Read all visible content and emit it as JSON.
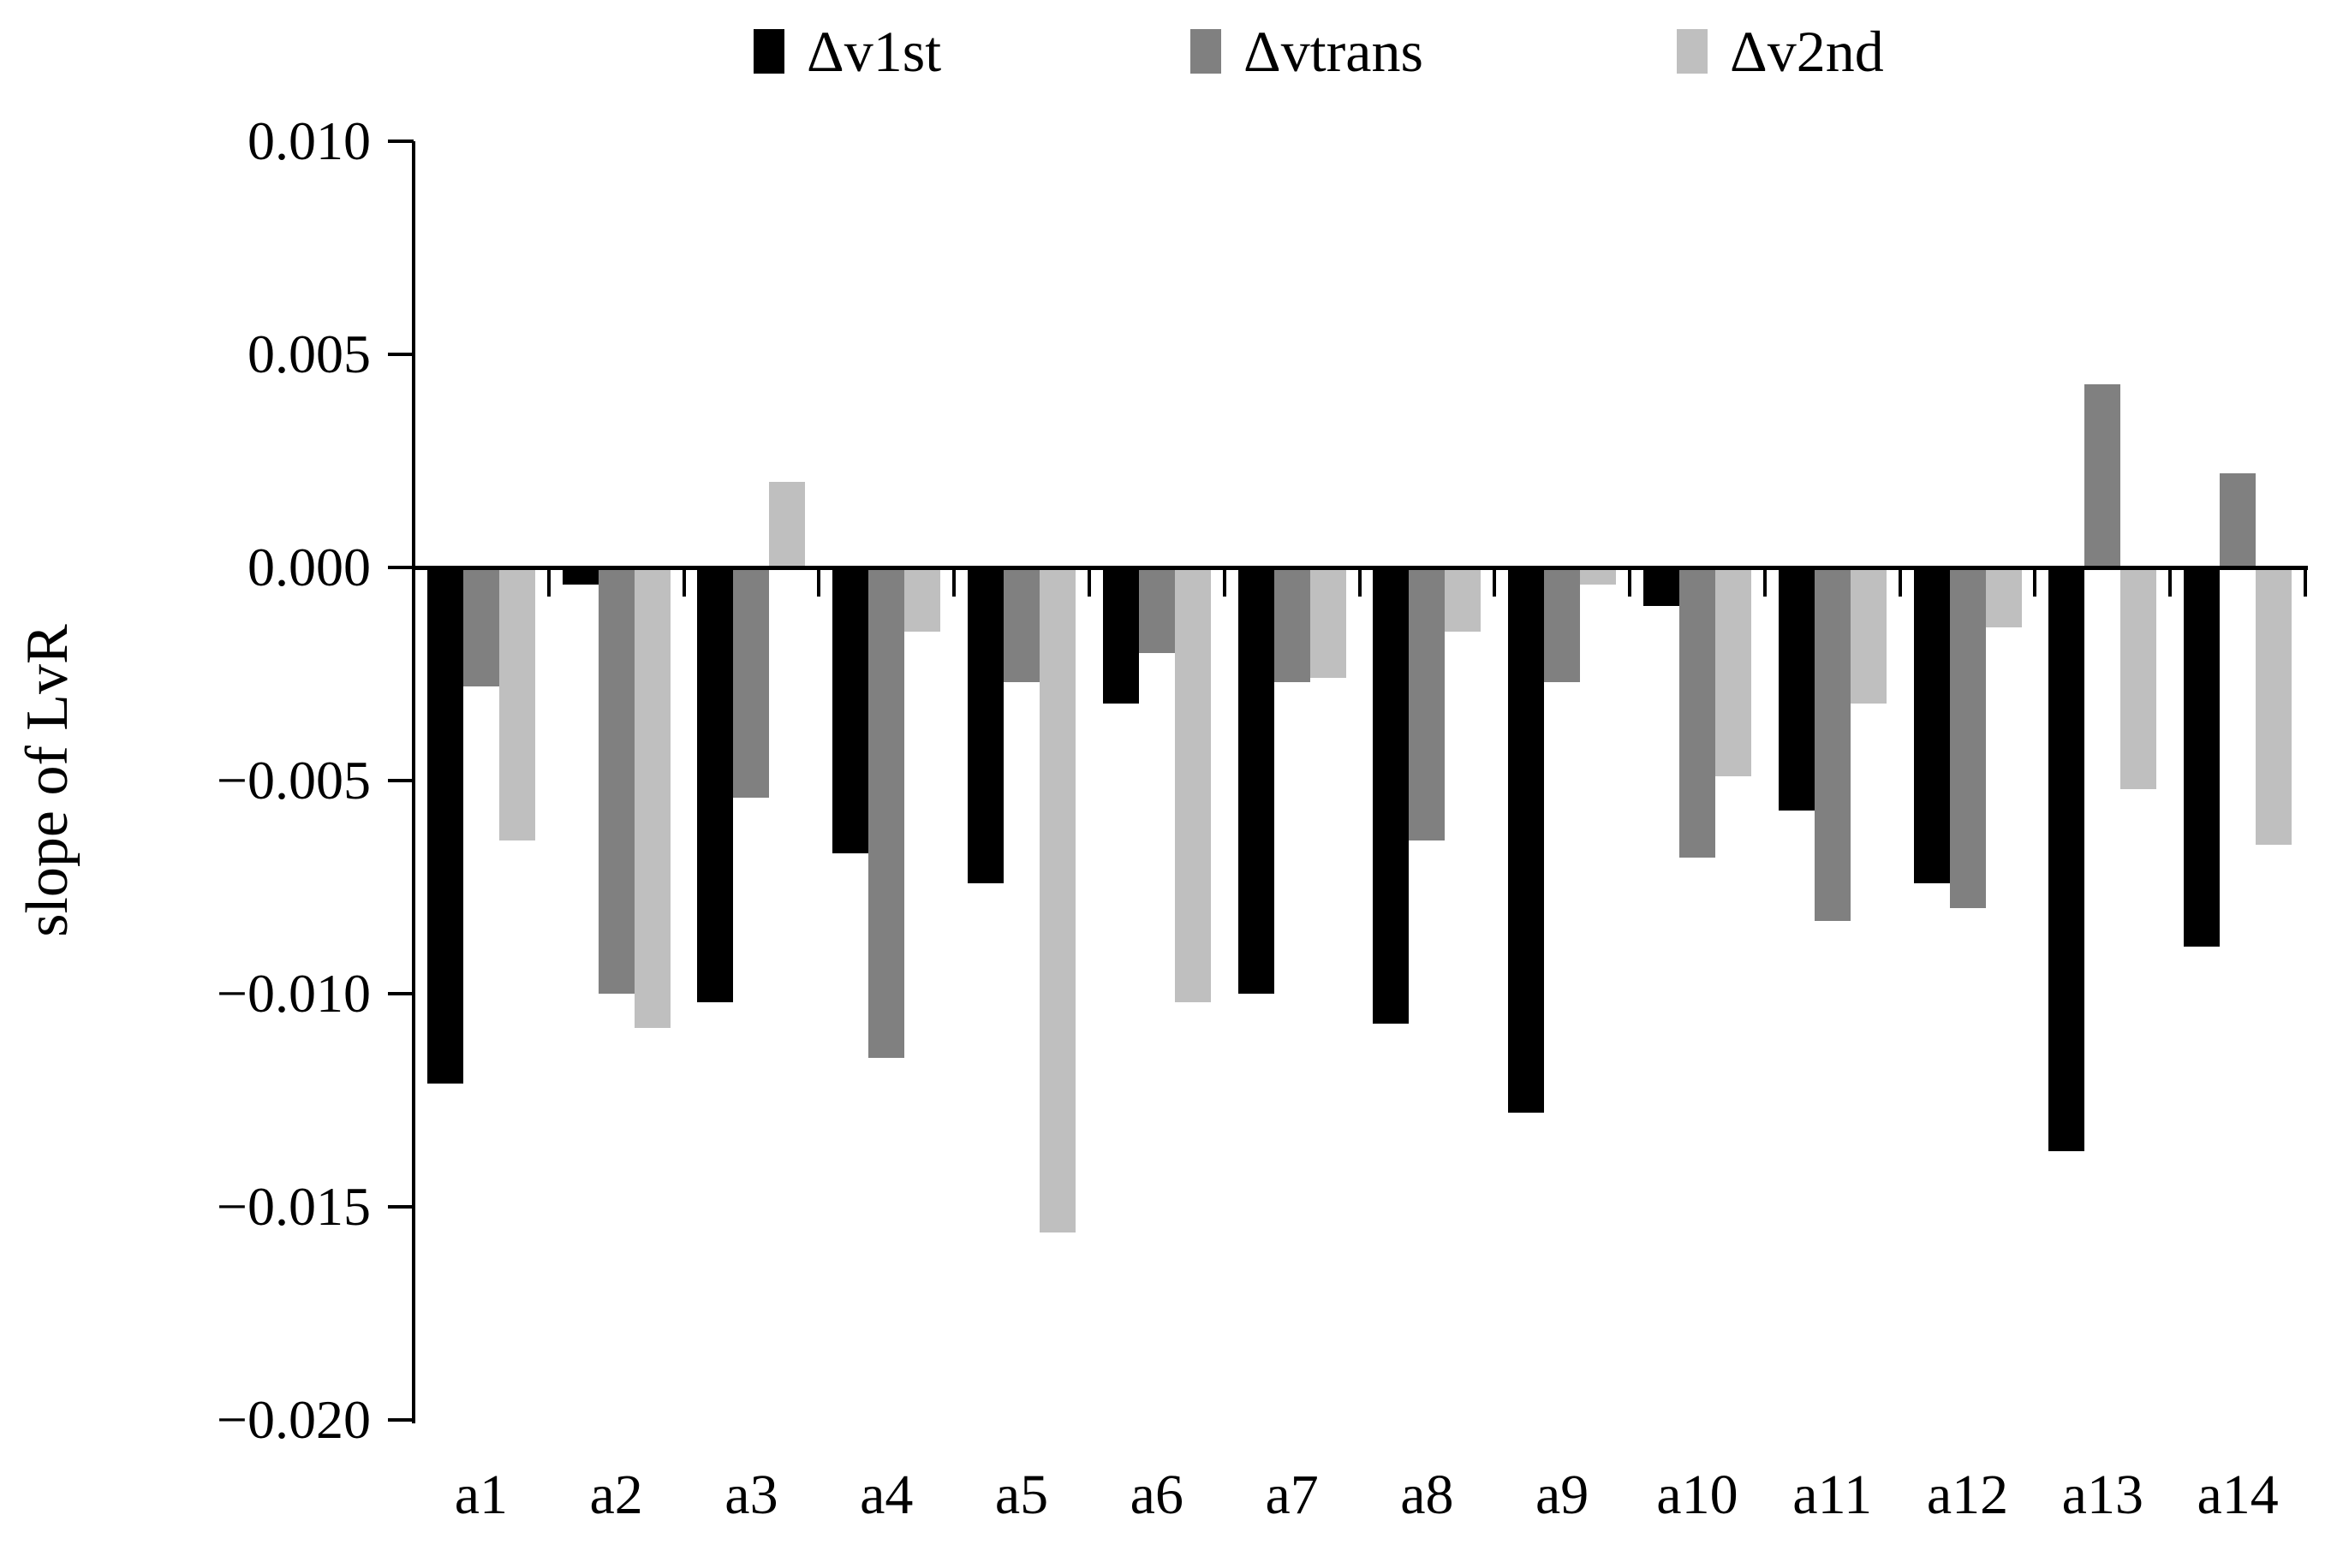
{
  "chart_data": {
    "type": "bar",
    "title": "",
    "xlabel": "",
    "ylabel": "slope of LvR",
    "ylim": [
      -0.02,
      0.01
    ],
    "grid": false,
    "legend_position": "top",
    "ytick_labels": [
      "0.010",
      "0.005",
      "0.000",
      "−0.005",
      "−0.010",
      "−0.015",
      "−0.020"
    ],
    "ytick_values": [
      0.01,
      0.005,
      0.0,
      -0.005,
      -0.01,
      -0.015,
      -0.02
    ],
    "categories": [
      "a1",
      "a2",
      "a3",
      "a4",
      "a5",
      "a6",
      "a7",
      "a8",
      "a9",
      "a10",
      "a11",
      "a12",
      "a13",
      "a14"
    ],
    "series": [
      {
        "name": "Δv1st",
        "color": "#000000",
        "values": [
          -0.0121,
          -0.0004,
          -0.0102,
          -0.0067,
          -0.0074,
          -0.0032,
          -0.01,
          -0.0107,
          -0.0128,
          -0.0009,
          -0.0057,
          -0.0074,
          -0.0137,
          -0.0089
        ]
      },
      {
        "name": "Δvtrans",
        "color": "#808080",
        "values": [
          -0.0028,
          -0.01,
          -0.0054,
          -0.0115,
          -0.0027,
          -0.002,
          -0.0027,
          -0.0064,
          -0.0027,
          -0.0068,
          -0.0083,
          -0.008,
          0.0043,
          0.0022
        ]
      },
      {
        "name": "Δv2nd",
        "color": "#bfbfbf",
        "values": [
          -0.0064,
          -0.0108,
          0.002,
          -0.0015,
          -0.0156,
          -0.0102,
          -0.0026,
          -0.0015,
          -0.0004,
          -0.0049,
          -0.0032,
          -0.0014,
          -0.0052,
          -0.0065
        ]
      }
    ]
  }
}
